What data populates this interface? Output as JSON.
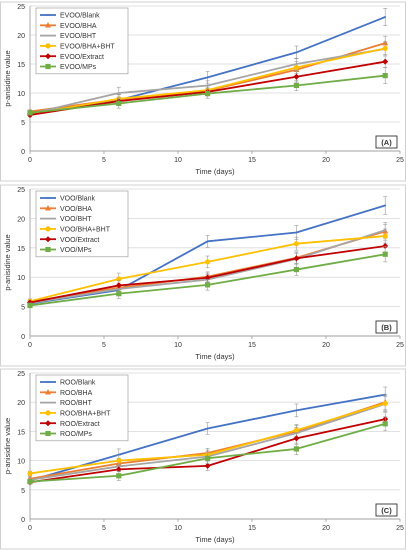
{
  "chart_data": [
    {
      "type": "line",
      "panel_label": "(A)",
      "xlabel": "Time (days)",
      "ylabel": "p-anisidine value",
      "xlim": [
        0,
        25
      ],
      "ylim": [
        0,
        25
      ],
      "xticks": [
        0,
        5,
        10,
        15,
        20,
        25
      ],
      "yticks": [
        0,
        5,
        10,
        15,
        20,
        25
      ],
      "grid": true,
      "legend": "top-left",
      "x": [
        0,
        6,
        12,
        18,
        24
      ],
      "series": [
        {
          "name": "EVOO/Blank",
          "color": "#4472c4",
          "marker": "none",
          "values": [
            6.3,
            8.8,
            12.7,
            17.0,
            23.1
          ],
          "err": [
            0.4,
            0.9,
            1.0,
            1.1,
            1.5
          ]
        },
        {
          "name": "EVOO/BHA",
          "color": "#ed7d31",
          "marker": "triangle",
          "values": [
            6.8,
            8.9,
            10.4,
            14.0,
            18.6
          ],
          "err": [
            0.3,
            0.8,
            0.8,
            1.0,
            1.2
          ]
        },
        {
          "name": "EVOO/BHT",
          "color": "#a5a5a5",
          "marker": "none",
          "values": [
            6.4,
            10.0,
            11.3,
            15.0,
            17.6
          ],
          "err": [
            0.4,
            1.0,
            0.8,
            1.0,
            1.2
          ]
        },
        {
          "name": "EVOO/BHA+BHT",
          "color": "#ffc000",
          "marker": "circle",
          "values": [
            6.3,
            9.0,
            10.5,
            14.4,
            17.7
          ],
          "err": [
            0.4,
            0.8,
            0.8,
            1.0,
            1.1
          ]
        },
        {
          "name": "EVOO/Extract",
          "color": "#c00000",
          "marker": "diamond",
          "values": [
            6.2,
            8.6,
            10.2,
            12.8,
            15.4
          ],
          "err": [
            0.3,
            0.7,
            0.7,
            0.9,
            1.0
          ]
        },
        {
          "name": "EVOO/MPs",
          "color": "#70ad47",
          "marker": "square",
          "values": [
            6.6,
            8.2,
            9.9,
            11.3,
            13.0
          ],
          "err": [
            0.4,
            0.8,
            0.8,
            0.9,
            1.4
          ]
        }
      ]
    },
    {
      "type": "line",
      "panel_label": "(B)",
      "xlabel": "Time (days)",
      "ylabel": "p-anisidine value",
      "xlim": [
        0,
        25
      ],
      "ylim": [
        0,
        25
      ],
      "xticks": [
        0,
        5,
        10,
        15,
        20,
        25
      ],
      "yticks": [
        0,
        5,
        10,
        15,
        20,
        25
      ],
      "grid": true,
      "legend": "top-left",
      "x": [
        0,
        6,
        12,
        18,
        24
      ],
      "series": [
        {
          "name": "VOO/Blank",
          "color": "#4472c4",
          "marker": "none",
          "values": [
            5.5,
            7.8,
            16.1,
            17.6,
            22.2
          ],
          "err": [
            0.4,
            0.8,
            1.0,
            1.2,
            1.5
          ]
        },
        {
          "name": "VOO/BHA",
          "color": "#ed7d31",
          "marker": "triangle",
          "values": [
            5.8,
            8.2,
            10.1,
            13.3,
            17.8
          ],
          "err": [
            0.3,
            0.8,
            0.8,
            1.0,
            1.2
          ]
        },
        {
          "name": "VOO/BHT",
          "color": "#a5a5a5",
          "marker": "none",
          "values": [
            5.6,
            8.0,
            9.6,
            13.1,
            18.0
          ],
          "err": [
            0.4,
            0.8,
            0.9,
            1.0,
            1.3
          ]
        },
        {
          "name": "VOO/BHA+BHT",
          "color": "#ffc000",
          "marker": "circle",
          "values": [
            5.9,
            9.7,
            12.6,
            15.7,
            17.0
          ],
          "err": [
            0.4,
            1.0,
            1.0,
            1.1,
            1.2
          ]
        },
        {
          "name": "VOO/Extract",
          "color": "#c00000",
          "marker": "diamond",
          "values": [
            5.7,
            8.6,
            9.9,
            13.2,
            15.3
          ],
          "err": [
            0.3,
            0.8,
            0.8,
            0.9,
            1.0
          ]
        },
        {
          "name": "VOO/MPs",
          "color": "#70ad47",
          "marker": "square",
          "values": [
            5.2,
            7.2,
            8.7,
            11.3,
            13.9
          ],
          "err": [
            0.4,
            0.8,
            0.9,
            1.0,
            1.3
          ]
        }
      ]
    },
    {
      "type": "line",
      "panel_label": "(C)",
      "xlabel": "Time (days)",
      "ylabel": "p-anisidine value",
      "xlim": [
        0,
        25
      ],
      "ylim": [
        0,
        25
      ],
      "xticks": [
        0,
        5,
        10,
        15,
        20,
        25
      ],
      "yticks": [
        0,
        5,
        10,
        15,
        20,
        25
      ],
      "grid": true,
      "legend": "top-left",
      "x": [
        0,
        6,
        12,
        18,
        24
      ],
      "series": [
        {
          "name": "ROO/Blank",
          "color": "#4472c4",
          "marker": "none",
          "values": [
            6.6,
            11.0,
            15.5,
            18.6,
            21.3
          ],
          "err": [
            0.4,
            1.0,
            1.0,
            1.1,
            1.3
          ]
        },
        {
          "name": "ROO/BHA",
          "color": "#ed7d31",
          "marker": "triangle",
          "values": [
            6.9,
            9.5,
            11.3,
            15.0,
            20.0
          ],
          "err": [
            0.4,
            0.9,
            0.8,
            1.0,
            1.3
          ]
        },
        {
          "name": "ROO/BHT",
          "color": "#a5a5a5",
          "marker": "none",
          "values": [
            6.7,
            9.0,
            10.7,
            14.7,
            19.7
          ],
          "err": [
            0.4,
            0.9,
            0.8,
            1.0,
            1.3
          ]
        },
        {
          "name": "ROO/BHA+BHT",
          "color": "#ffc000",
          "marker": "circle",
          "values": [
            7.8,
            10.0,
            11.0,
            15.2,
            19.8
          ],
          "err": [
            0.4,
            0.9,
            0.8,
            1.0,
            1.3
          ]
        },
        {
          "name": "ROO/Extract",
          "color": "#c00000",
          "marker": "diamond",
          "values": [
            6.3,
            8.5,
            9.1,
            13.8,
            17.1
          ],
          "err": [
            0.3,
            0.8,
            0.8,
            1.0,
            1.1
          ]
        },
        {
          "name": "ROO/MPs",
          "color": "#70ad47",
          "marker": "square",
          "values": [
            6.4,
            7.4,
            10.4,
            12.0,
            16.3
          ],
          "err": [
            0.4,
            0.8,
            0.9,
            1.0,
            1.2
          ]
        }
      ]
    }
  ]
}
